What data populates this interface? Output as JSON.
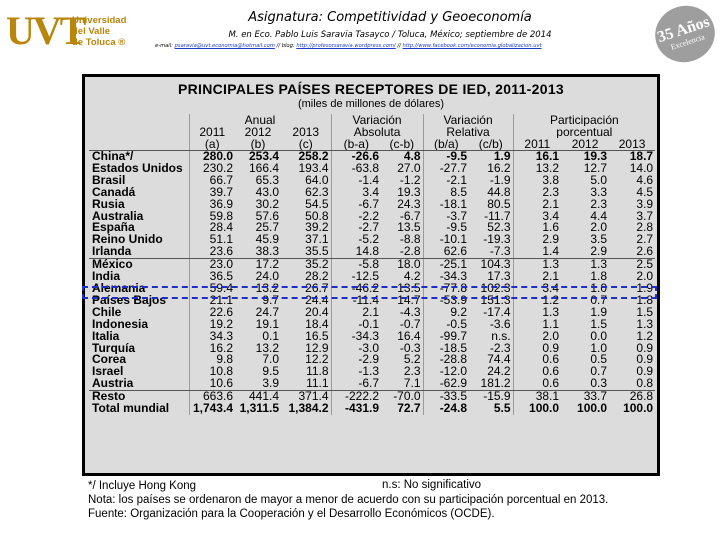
{
  "header": {
    "logo_mark": "UVT",
    "logo_text": [
      "Universidad",
      "del Valle",
      "de Toluca ®"
    ],
    "badge_top": "35 Años",
    "badge_bottom": "Excelencia",
    "title": "Asignatura: Competitividad y Geoeconomía",
    "subtitle": "M. en Eco. Pablo Luis Saravia Tasayco / Toluca, México; septiembre de 2014",
    "links_prefix": "e-mail:",
    "links": [
      "psaravia@uvt.economia@hotmail.com",
      "blog:",
      "http://profesorsaravia.wordpress.com/",
      "http://www.facebook.com/economia.globalizacion.uvt"
    ]
  },
  "table": {
    "title": "PRINCIPALES PAÍSES RECEPTORES DE IED, 2011-2013",
    "subtitle": "(miles de millones de dólares)",
    "groups": [
      "Anual",
      "Variación",
      "Variación",
      "Participación"
    ],
    "groups2": [
      "Absoluta",
      "Relativa",
      "porcentual"
    ],
    "years": [
      "2011",
      "2012",
      "2013",
      "2011",
      "2012",
      "2013"
    ],
    "codes": [
      "(a)",
      "(b)",
      "(c)",
      "(b-a)",
      "(c-b)",
      "(b/a)",
      "(c/b)"
    ],
    "rows": [
      [
        "China*/",
        "280.0",
        "253.4",
        "258.2",
        "-26.6",
        "4.8",
        "-9.5",
        "1.9",
        "16.1",
        "19.3",
        "18.7"
      ],
      [
        "Estados Unidos",
        "230.2",
        "166.4",
        "193.4",
        "-63.8",
        "27.0",
        "-27.7",
        "16.2",
        "13.2",
        "12.7",
        "14.0"
      ],
      [
        "Brasil",
        "66.7",
        "65.3",
        "64.0",
        "-1.4",
        "-1.2",
        "-2.1",
        "-1.9",
        "3.8",
        "5.0",
        "4.6"
      ],
      [
        "Canadá",
        "39.7",
        "43.0",
        "62.3",
        "3.4",
        "19.3",
        "8.5",
        "44.8",
        "2.3",
        "3.3",
        "4.5"
      ],
      [
        "Rusia",
        "36.9",
        "30.2",
        "54.5",
        "-6.7",
        "24.3",
        "-18.1",
        "80.5",
        "2.1",
        "2.3",
        "3.9"
      ],
      [
        "Australia",
        "59.8",
        "57.6",
        "50.8",
        "-2.2",
        "-6.7",
        "-3.7",
        "-11.7",
        "3.4",
        "4.4",
        "3.7"
      ],
      [
        "España",
        "28.4",
        "25.7",
        "39.2",
        "-2.7",
        "13.5",
        "-9.5",
        "52.3",
        "1.6",
        "2.0",
        "2.8"
      ],
      [
        "Reino Unido",
        "51.1",
        "45.9",
        "37.1",
        "-5.2",
        "-8.8",
        "-10.1",
        "-19.3",
        "2.9",
        "3.5",
        "2.7"
      ],
      [
        "Irlanda",
        "23.6",
        "38.3",
        "35.5",
        "14.8",
        "-2.8",
        "62.6",
        "-7.3",
        "1.4",
        "2.9",
        "2.6"
      ],
      [
        "México",
        "23.0",
        "17.2",
        "35.2",
        "-5.8",
        "18.0",
        "-25.1",
        "104.3",
        "1.3",
        "1.3",
        "2.5"
      ],
      [
        "India",
        "36.5",
        "24.0",
        "28.2",
        "-12.5",
        "4.2",
        "-34.3",
        "17.3",
        "2.1",
        "1.8",
        "2.0"
      ],
      [
        "Alemania",
        "59.4",
        "13.2",
        "26.7",
        "-46.2",
        "13.5",
        "-77.8",
        "102.3",
        "3.4",
        "1.0",
        "1.9"
      ],
      [
        "Países Bajos",
        "21.1",
        "9.7",
        "24.4",
        "-11.4",
        "14.7",
        "-53.9",
        "151.3",
        "1.2",
        "0.7",
        "1.8"
      ],
      [
        "Chile",
        "22.6",
        "24.7",
        "20.4",
        "2.1",
        "-4.3",
        "9.2",
        "-17.4",
        "1.3",
        "1.9",
        "1.5"
      ],
      [
        "Indonesia",
        "19.2",
        "19.1",
        "18.4",
        "-0.1",
        "-0.7",
        "-0.5",
        "-3.6",
        "1.1",
        "1.5",
        "1.3"
      ],
      [
        "Italia",
        "34.3",
        "0.1",
        "16.5",
        "-34.3",
        "16.4",
        "-99.7",
        "n.s.",
        "2.0",
        "0.0",
        "1.2"
      ],
      [
        "Turquía",
        "16.2",
        "13.2",
        "12.9",
        "-3.0",
        "-0.3",
        "-18.5",
        "-2.3",
        "0.9",
        "1.0",
        "0.9"
      ],
      [
        "Corea",
        "9.8",
        "7.0",
        "12.2",
        "-2.9",
        "5.2",
        "-28.8",
        "74.4",
        "0.6",
        "0.5",
        "0.9"
      ],
      [
        "Israel",
        "10.8",
        "9.5",
        "11.8",
        "-1.3",
        "2.3",
        "-12.0",
        "24.2",
        "0.6",
        "0.7",
        "0.9"
      ],
      [
        "Austria",
        "10.6",
        "3.9",
        "11.1",
        "-6.7",
        "7.1",
        "-62.9",
        "181.2",
        "0.6",
        "0.3",
        "0.8"
      ],
      [
        "Resto",
        "663.6",
        "441.4",
        "371.4",
        "-222.2",
        "-70.0",
        "-33.5",
        "-15.9",
        "38.1",
        "33.7",
        "26.8"
      ],
      [
        "Total mundial",
        "1,743.4",
        "1,311.5",
        "1,384.2",
        "-431.9",
        "72.7",
        "-24.8",
        "5.5",
        "100.0",
        "100.0",
        "100.0"
      ]
    ]
  },
  "notes": {
    "n1": "*/ Incluye Hong Kong",
    "ns": "n.s: No significativo",
    "n2": "Nota: los países se ordenaron de mayor a menor de acuerdo con su participación porcentual en 2013.",
    "n3": "Fuente: Organización para la Cooperación y el Desarrollo Económicos (OCDE)."
  }
}
